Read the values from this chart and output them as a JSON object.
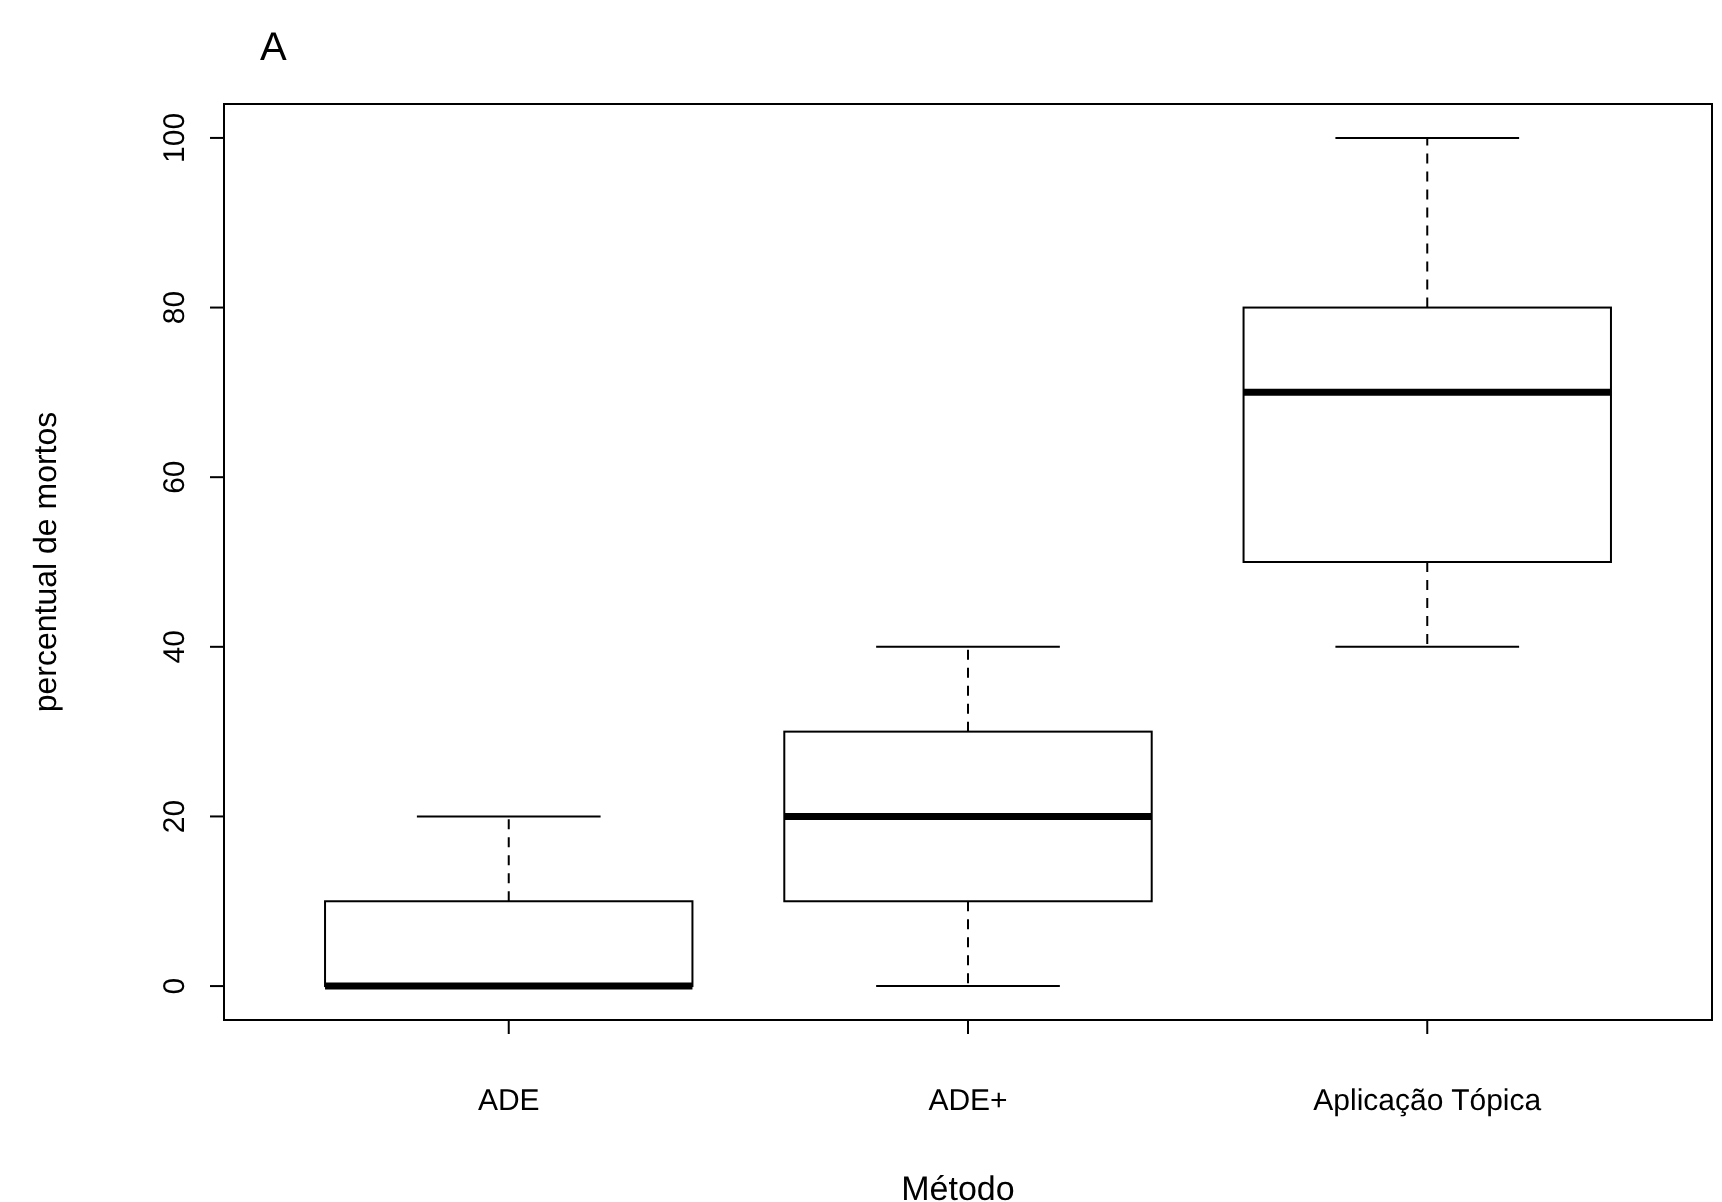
{
  "chart_data": {
    "type": "box",
    "title": "A",
    "xlabel": "Método",
    "ylabel": "percentual de mortos",
    "categories": [
      "ADE",
      "ADE+",
      "Aplicação Tópica"
    ],
    "boxes": [
      {
        "low": 0,
        "q1": 0,
        "median": 0,
        "q3": 10,
        "high": 20
      },
      {
        "low": 0,
        "q1": 10,
        "median": 20,
        "q3": 30,
        "high": 40
      },
      {
        "low": 40,
        "q1": 50,
        "median": 70,
        "q3": 80,
        "high": 100
      }
    ],
    "ylim": [
      -4,
      104
    ],
    "yticks": [
      0,
      20,
      40,
      60,
      80,
      100
    ],
    "grid": false
  }
}
